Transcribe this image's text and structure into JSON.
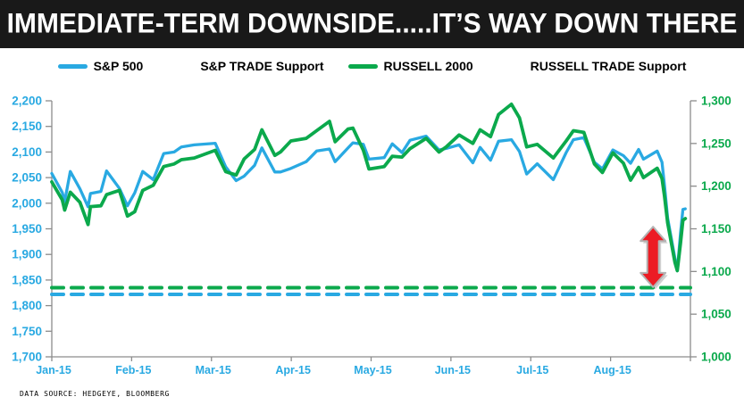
{
  "header": {
    "title": "IMMEDIATE-TERM DOWNSIDE.....IT’S WAY DOWN THERE"
  },
  "legend": [
    {
      "label": "S&P 500",
      "style": "solid",
      "color": "#29A9E2"
    },
    {
      "label": "S&P TRADE Support",
      "style": "dashed",
      "color": "#29A9E2"
    },
    {
      "label": "RUSSELL 2000",
      "style": "solid",
      "color": "#0BA94C"
    },
    {
      "label": "RUSSELL TRADE Support",
      "style": "dashed",
      "color": "#0BA94C"
    }
  ],
  "footer": {
    "source": "DATA SOURCE: HEDGEYE, BLOOMBERG"
  },
  "colors": {
    "sp500": "#29A9E2",
    "russell": "#0BA94C",
    "axis": "#8c8c8c",
    "arrow_red": "#EC1C24",
    "arrow_outline": "#b3b3b3",
    "header_bg": "#191919"
  },
  "chart_data": {
    "type": "line",
    "title": "",
    "x_unit": "months since Jan-1-2015 (decimal)",
    "x_max": 7.9,
    "x_tick_labels": [
      "Jan-15",
      "Feb-15",
      "Mar-15",
      "Apr-15",
      "May-15",
      "Jun-15",
      "Jul-15",
      "Aug-15"
    ],
    "left_axis": {
      "min": 1700,
      "max": 2200,
      "step": 50,
      "tick_labels": [
        "2,200",
        "2,150",
        "2,100",
        "2,050",
        "2,000",
        "1,950",
        "1,900",
        "1,850",
        "1,800",
        "1,750",
        "1,700"
      ]
    },
    "right_axis": {
      "min": 1000,
      "max": 1300,
      "step": 50,
      "tick_labels": [
        "1,300",
        "1,250",
        "1,200",
        "1,150",
        "1,100",
        "1,050",
        "1,000"
      ]
    },
    "grid": false,
    "legend_position": "top",
    "x": [
      0.0,
      0.13,
      0.16,
      0.23,
      0.35,
      0.45,
      0.48,
      0.61,
      0.68,
      0.84,
      0.94,
      1.03,
      1.13,
      1.26,
      1.39,
      1.52,
      1.61,
      1.77,
      2.03,
      2.16,
      2.29,
      2.39,
      2.52,
      2.61,
      2.77,
      2.84,
      2.97,
      3.16,
      3.29,
      3.45,
      3.52,
      3.68,
      3.74,
      3.87,
      3.94,
      4.13,
      4.23,
      4.35,
      4.45,
      4.65,
      4.81,
      4.9,
      5.06,
      5.23,
      5.32,
      5.45,
      5.55,
      5.71,
      5.81,
      5.9,
      6.03,
      6.23,
      6.39,
      6.48,
      6.61,
      6.74,
      6.84,
      6.97,
      7.1,
      7.19,
      7.29,
      7.35,
      7.52,
      7.58,
      7.61,
      7.65,
      7.74,
      7.77,
      7.81,
      7.84,
      7.87
    ],
    "series": [
      {
        "name": "S&P 500",
        "axis": "left",
        "style": "solid",
        "color": "#29A9E2",
        "values": [
          2058,
          2021,
          2003,
          2062,
          2028,
          1993,
          2019,
          2023,
          2063,
          2029,
          1995,
          2020,
          2062,
          2046,
          2097,
          2100,
          2110,
          2114,
          2117,
          2071,
          2044,
          2053,
          2074,
          2108,
          2061,
          2061,
          2068,
          2081,
          2102,
          2106,
          2081,
          2108,
          2118,
          2115,
          2086,
          2089,
          2116,
          2099,
          2123,
          2131,
          2104,
          2107,
          2114,
          2079,
          2109,
          2084,
          2121,
          2124,
          2101,
          2057,
          2077,
          2046,
          2099,
          2124,
          2128,
          2080,
          2067,
          2104,
          2093,
          2078,
          2105,
          2086,
          2102,
          2080,
          2036,
          1971,
          1893,
          1868,
          1941,
          1988,
          1989
        ]
      },
      {
        "name": "RUSSELL 2000",
        "axis": "right",
        "style": "solid",
        "color": "#0BA94C",
        "values": [
          1205,
          1184,
          1172,
          1193,
          1181,
          1155,
          1176,
          1177,
          1190,
          1195,
          1165,
          1170,
          1195,
          1201,
          1223,
          1226,
          1231,
          1233,
          1242,
          1217,
          1213,
          1232,
          1243,
          1266,
          1236,
          1240,
          1253,
          1256,
          1265,
          1276,
          1252,
          1267,
          1268,
          1242,
          1220,
          1223,
          1235,
          1234,
          1244,
          1256,
          1240,
          1246,
          1260,
          1250,
          1266,
          1258,
          1284,
          1296,
          1280,
          1246,
          1249,
          1233,
          1253,
          1265,
          1263,
          1226,
          1216,
          1239,
          1227,
          1207,
          1222,
          1210,
          1221,
          1209,
          1189,
          1157,
          1111,
          1101,
          1133,
          1160,
          1162
        ]
      },
      {
        "name": "S&P TRADE Support",
        "axis": "left",
        "style": "dashed",
        "color": "#29A9E2",
        "value": 1822
      },
      {
        "name": "RUSSELL TRADE Support",
        "axis": "right",
        "style": "dashed",
        "color": "#0BA94C",
        "value": 1081
      }
    ],
    "annotation": {
      "type": "double-headed-vertical-arrow",
      "color": "#EC1C24",
      "x_month": 7.47,
      "top_value_left_axis": 1954,
      "bottom_value_left_axis": 1836
    }
  }
}
